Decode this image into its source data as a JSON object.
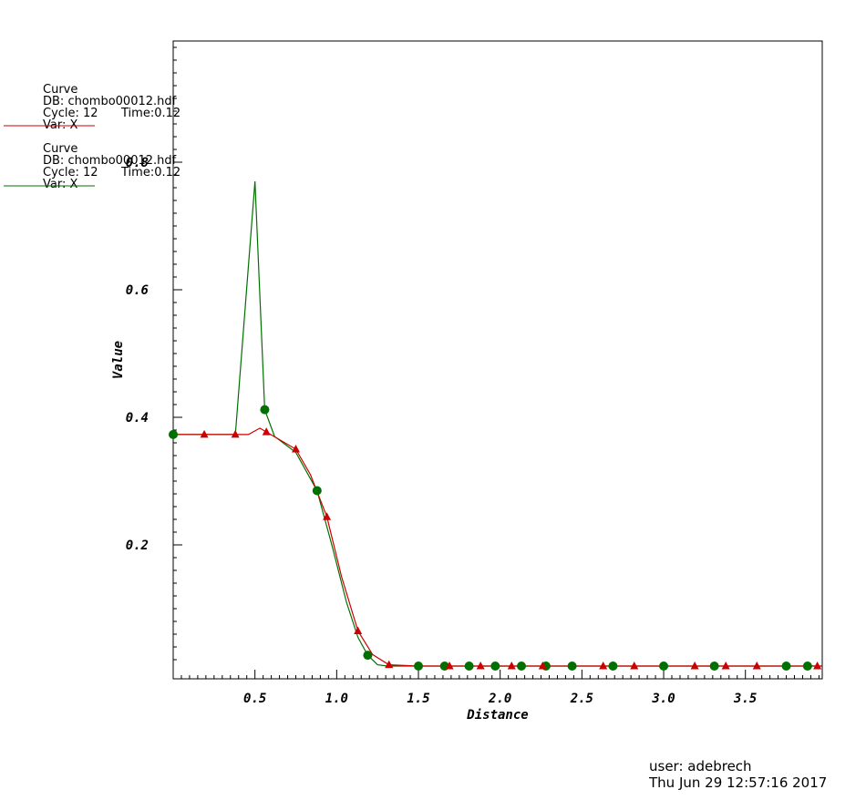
{
  "legend": [
    {
      "title": "Curve",
      "db": "DB: chombo00012.hdf",
      "cycle": "Cycle:  12",
      "time": "Time:0.12",
      "var": "Var: X",
      "color": "#cc0000"
    },
    {
      "title": "Curve",
      "db": "DB: chombo00012.hdf",
      "cycle": "Cycle:  12",
      "time": "Time:0.12",
      "var": "Var: X",
      "color": "#007000"
    }
  ],
  "footer": {
    "user": "user: adebrech",
    "date": "Thu Jun 29 12:57:16 2017"
  },
  "chart_data": {
    "type": "line",
    "xlabel": "Distance",
    "ylabel": "Value",
    "xlim": [
      0.0,
      3.97
    ],
    "ylim": [
      -0.01,
      0.99
    ],
    "xticks": [
      0.5,
      1.0,
      1.5,
      2.0,
      2.5,
      3.0,
      3.5
    ],
    "xtick_labels": [
      "0.5",
      "1.0",
      "1.5",
      "2.0",
      "2.5",
      "3.0",
      "3.5"
    ],
    "yticks": [
      0.2,
      0.4,
      0.6,
      0.8
    ],
    "ytick_labels": [
      "0.2",
      "0.4",
      "0.6",
      "0.8"
    ],
    "series": [
      {
        "color": "#cc0000",
        "marker": "triangle",
        "x": [
          0.0,
          0.19,
          0.38,
          0.46,
          0.53,
          0.57,
          0.65,
          0.75,
          0.84,
          0.94,
          1.03,
          1.13,
          1.22,
          1.32,
          1.5,
          1.69,
          1.88,
          2.07,
          2.26,
          2.44,
          2.63,
          2.82,
          3.0,
          3.19,
          3.38,
          3.57,
          3.75,
          3.94,
          3.97
        ],
        "y": [
          0.373,
          0.373,
          0.373,
          0.373,
          0.383,
          0.377,
          0.365,
          0.35,
          0.31,
          0.244,
          0.15,
          0.065,
          0.028,
          0.012,
          0.01,
          0.01,
          0.01,
          0.01,
          0.01,
          0.01,
          0.01,
          0.01,
          0.01,
          0.01,
          0.01,
          0.01,
          0.01,
          0.01,
          0.01
        ],
        "marker_x": [
          0.19,
          0.38,
          0.57,
          0.75,
          0.94,
          1.13,
          1.32,
          1.69,
          1.88,
          2.07,
          2.26,
          2.63,
          2.82,
          3.19,
          3.38,
          3.57,
          3.94
        ],
        "marker_y": [
          0.373,
          0.373,
          0.377,
          0.35,
          0.244,
          0.065,
          0.012,
          0.01,
          0.01,
          0.01,
          0.01,
          0.01,
          0.01,
          0.01,
          0.01,
          0.01,
          0.01
        ]
      },
      {
        "color": "#007000",
        "marker": "circle",
        "x": [
          0.0,
          0.38,
          0.5,
          0.56,
          0.62,
          0.75,
          0.88,
          0.97,
          1.06,
          1.13,
          1.19,
          1.25,
          1.31,
          1.5,
          1.69,
          1.88,
          2.06,
          2.25,
          2.44,
          2.62,
          2.81,
          3.0,
          3.19,
          3.38,
          3.56,
          3.75,
          3.94,
          3.97
        ],
        "y": [
          0.373,
          0.373,
          0.77,
          0.412,
          0.37,
          0.345,
          0.285,
          0.2,
          0.11,
          0.055,
          0.027,
          0.012,
          0.01,
          0.01,
          0.01,
          0.01,
          0.01,
          0.01,
          0.01,
          0.01,
          0.01,
          0.01,
          0.01,
          0.01,
          0.01,
          0.01,
          0.01,
          0.01
        ],
        "marker_x": [
          0.0,
          0.56,
          0.88,
          1.19,
          1.5,
          1.66,
          1.81,
          1.97,
          2.13,
          2.28,
          2.44,
          2.69,
          3.0,
          3.31,
          3.75,
          3.88
        ],
        "marker_y": [
          0.373,
          0.412,
          0.285,
          0.027,
          0.01,
          0.01,
          0.01,
          0.01,
          0.01,
          0.01,
          0.01,
          0.01,
          0.01,
          0.01,
          0.01,
          0.01
        ]
      }
    ]
  }
}
